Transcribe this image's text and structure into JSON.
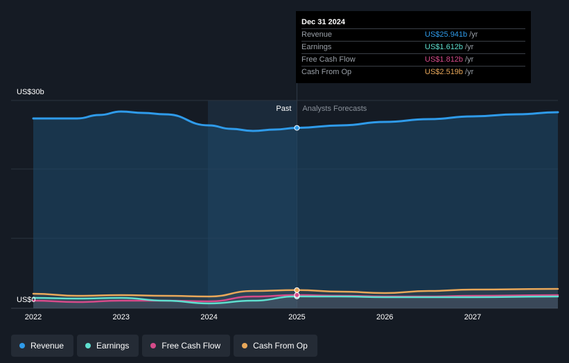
{
  "chart_data": {
    "type": "area",
    "x_ticks": [
      "2022",
      "2023",
      "2024",
      "2025",
      "2026",
      "2027"
    ],
    "y_ticks": [
      {
        "value": 30,
        "label": "US$30b"
      },
      {
        "value": 0,
        "label": "US$0"
      }
    ],
    "ylim": [
      0,
      30
    ],
    "xlim": [
      2022.0,
      2027.97
    ],
    "past_label": "Past",
    "forecast_label": "Analysts Forecasts",
    "divider_x": 2025.0,
    "series": [
      {
        "name": "Revenue",
        "color": "#2f9bea",
        "points": [
          [
            2022.0,
            27.3
          ],
          [
            2022.5,
            27.3
          ],
          [
            2022.75,
            27.8
          ],
          [
            2023.0,
            28.3
          ],
          [
            2023.25,
            28.1
          ],
          [
            2023.5,
            27.9
          ],
          [
            2024.0,
            26.3
          ],
          [
            2024.25,
            25.8
          ],
          [
            2024.5,
            25.5
          ],
          [
            2024.75,
            25.7
          ],
          [
            2025.0,
            25.941
          ],
          [
            2025.5,
            26.3
          ],
          [
            2026.0,
            26.8
          ],
          [
            2026.5,
            27.2
          ],
          [
            2027.0,
            27.6
          ],
          [
            2027.5,
            27.9
          ],
          [
            2027.97,
            28.2
          ]
        ]
      },
      {
        "name": "Earnings",
        "color": "#5fdfcf",
        "points": [
          [
            2022.0,
            1.4
          ],
          [
            2022.5,
            1.3
          ],
          [
            2023.0,
            1.4
          ],
          [
            2023.5,
            1.0
          ],
          [
            2024.0,
            0.6
          ],
          [
            2024.5,
            1.0
          ],
          [
            2025.0,
            1.612
          ],
          [
            2025.5,
            1.6
          ],
          [
            2026.0,
            1.5
          ],
          [
            2026.5,
            1.5
          ],
          [
            2027.0,
            1.5
          ],
          [
            2027.97,
            1.6
          ]
        ]
      },
      {
        "name": "Free Cash Flow",
        "color": "#d64b8a",
        "points": [
          [
            2022.0,
            1.0
          ],
          [
            2022.5,
            0.8
          ],
          [
            2023.0,
            1.0
          ],
          [
            2023.5,
            1.0
          ],
          [
            2024.0,
            0.9
          ],
          [
            2024.5,
            1.6
          ],
          [
            2025.0,
            1.812
          ],
          [
            2025.5,
            1.7
          ],
          [
            2026.0,
            1.6
          ],
          [
            2026.5,
            1.6
          ],
          [
            2027.0,
            1.7
          ],
          [
            2027.97,
            1.8
          ]
        ]
      },
      {
        "name": "Cash From Op",
        "color": "#e9a85a",
        "points": [
          [
            2022.0,
            2.0
          ],
          [
            2022.5,
            1.7
          ],
          [
            2023.0,
            1.8
          ],
          [
            2023.5,
            1.7
          ],
          [
            2024.0,
            1.6
          ],
          [
            2024.5,
            2.4
          ],
          [
            2025.0,
            2.519
          ],
          [
            2025.5,
            2.3
          ],
          [
            2026.0,
            2.1
          ],
          [
            2026.5,
            2.4
          ],
          [
            2027.0,
            2.6
          ],
          [
            2027.97,
            2.7
          ]
        ]
      }
    ]
  },
  "tooltip": {
    "date": "Dec 31 2024",
    "rows": [
      {
        "label": "Revenue",
        "value": "US$25.941b",
        "unit": "/yr",
        "color": "#2f9bea"
      },
      {
        "label": "Earnings",
        "value": "US$1.612b",
        "unit": "/yr",
        "color": "#5fdfcf"
      },
      {
        "label": "Free Cash Flow",
        "value": "US$1.812b",
        "unit": "/yr",
        "color": "#d64b8a"
      },
      {
        "label": "Cash From Op",
        "value": "US$2.519b",
        "unit": "/yr",
        "color": "#e9a85a"
      }
    ]
  },
  "legend": [
    {
      "label": "Revenue",
      "color": "#2f9bea"
    },
    {
      "label": "Earnings",
      "color": "#5fdfcf"
    },
    {
      "label": "Free Cash Flow",
      "color": "#d64b8a"
    },
    {
      "label": "Cash From Op",
      "color": "#e9a85a"
    }
  ]
}
